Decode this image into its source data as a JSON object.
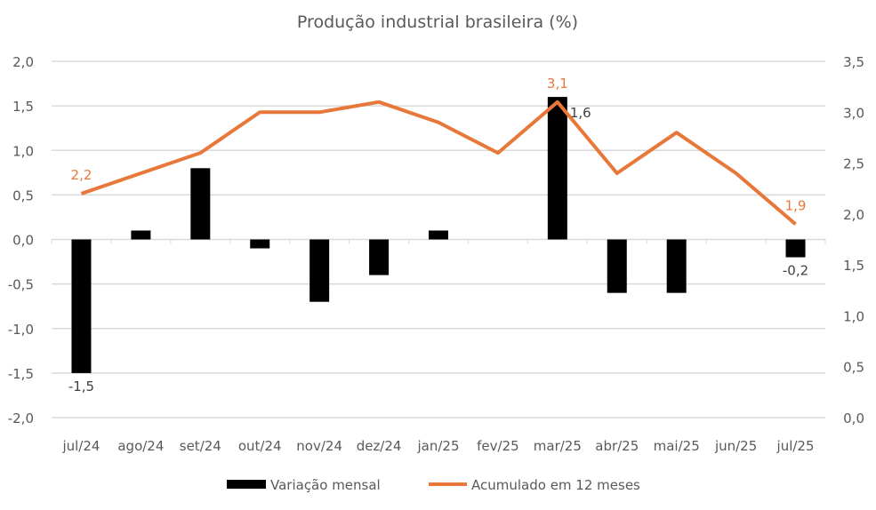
{
  "chart_data": {
    "type": "bar+line",
    "title": "Produção industrial brasileira (%)",
    "categories": [
      "jul/24",
      "ago/24",
      "set/24",
      "out/24",
      "nov/24",
      "dez/24",
      "jan/25",
      "fev/25",
      "mar/25",
      "abr/25",
      "mai/25",
      "jun/25",
      "jul/25"
    ],
    "series": [
      {
        "name": "Variação mensal",
        "type": "bar",
        "axis": "left",
        "color": "#000000",
        "values": [
          -1.5,
          0.1,
          0.8,
          -0.1,
          -0.7,
          -0.4,
          0.1,
          0.0,
          1.6,
          -0.6,
          -0.6,
          0.0,
          -0.2
        ],
        "data_labels": {
          "0": "-1,5",
          "8": "1,6",
          "12": "-0,2"
        }
      },
      {
        "name": "Acumulado em 12 meses",
        "type": "line",
        "axis": "right",
        "color": "#E8773A",
        "values": [
          2.2,
          2.4,
          2.6,
          3.0,
          3.0,
          3.1,
          2.9,
          2.6,
          3.1,
          2.4,
          2.8,
          2.4,
          1.9
        ],
        "data_labels": {
          "0": "2,2",
          "8": "3,1",
          "12": "1,9"
        }
      }
    ],
    "y_left": {
      "range": [
        -2.0,
        2.0
      ],
      "ticks": [
        "2,0",
        "1,5",
        "1,0",
        "0,5",
        "0,0",
        "-0,5",
        "-1,0",
        "-1,5",
        "-2,0"
      ]
    },
    "y_right": {
      "range": [
        0.0,
        3.5
      ],
      "ticks": [
        "3,5",
        "3,0",
        "2,5",
        "2,0",
        "1,5",
        "1,0",
        "0,5",
        "0,0"
      ]
    },
    "grid": true,
    "legend": "bottom"
  }
}
